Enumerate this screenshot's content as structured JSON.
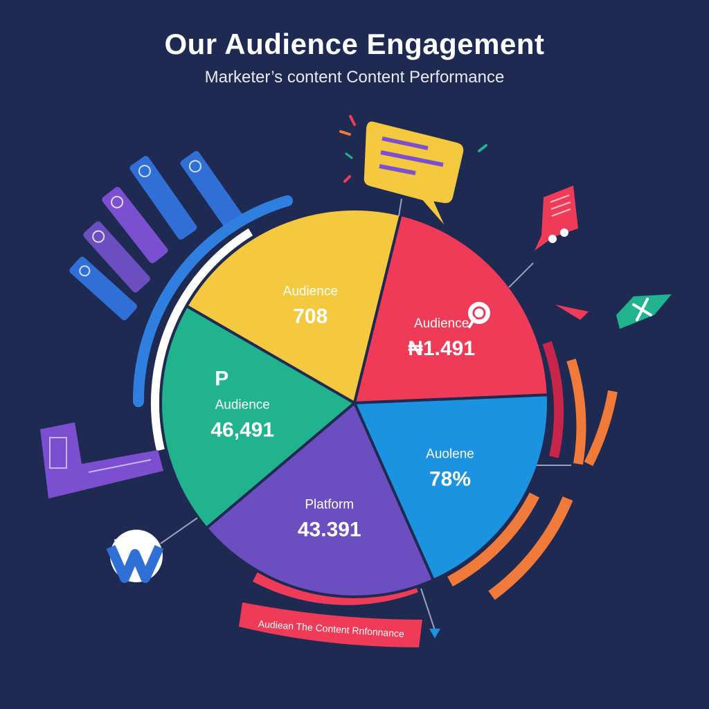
{
  "header": {
    "title": "Our Audience Engagement",
    "subtitle": "Marketer’s content Content Performance"
  },
  "chart_data": {
    "type": "pie",
    "title": "Our Audience Engagement",
    "subtitle": "Marketer’s content Content Performance",
    "slices": [
      {
        "label": "Audience",
        "value_label": "708",
        "share": 0.205,
        "color": "#f5c93f",
        "icon_text": ""
      },
      {
        "label": "Audience",
        "value_label": "₦1.491",
        "share": 0.205,
        "color": "#ef3b57",
        "icon_text": ""
      },
      {
        "label": "Auolene",
        "value_label": "78%",
        "share": 0.19,
        "color": "#1c93e0",
        "icon_text": ""
      },
      {
        "label": "Platform",
        "value_label": "43.391",
        "share": 0.205,
        "color": "#6b4fc0",
        "icon_text": ""
      },
      {
        "label": "Audience",
        "value_label": "46,491",
        "share": 0.195,
        "color": "#20b38e",
        "icon_text": "P"
      }
    ]
  },
  "banner": {
    "text": "Audiean The Content Rnfonnance"
  },
  "decor": {
    "palette": {
      "bg": "#1f2a52",
      "blue": "#2f6fd6",
      "purple": "#6b4fc0",
      "orange": "#f07a3a",
      "red": "#ef3b57",
      "yellow": "#f5c93f",
      "teal": "#20b38e"
    },
    "icons": [
      "speech-bubble-icon",
      "chat-card-icon",
      "send-plane-icon",
      "wordpress-icon",
      "social-card-icon",
      "search-icon"
    ]
  }
}
